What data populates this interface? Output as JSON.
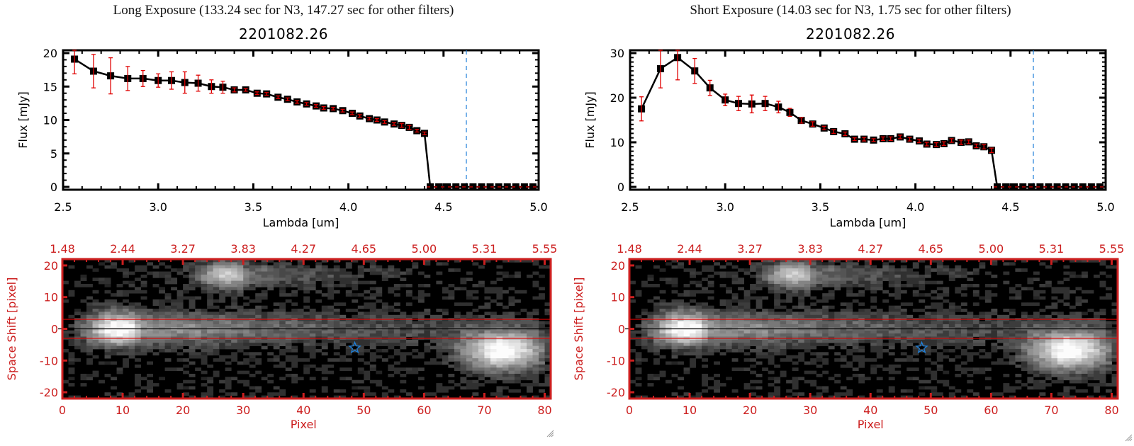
{
  "chart_data": [
    {
      "type": "line",
      "panel": "long",
      "title": "Long Exposure (133.24 sec for N3, 147.27 sec for other filters)",
      "subtitle": "2201082.26",
      "xlabel": "Lambda [um]",
      "ylabel": "Flux [mJy]",
      "xlim": [
        2.5,
        5.0
      ],
      "ylim": [
        0,
        20.5
      ],
      "xticks": [
        "2.5",
        "3.0",
        "3.5",
        "4.0",
        "4.5",
        "5.0"
      ],
      "xtick_values": [
        2.5,
        3.0,
        3.5,
        4.0,
        4.5,
        5.0
      ],
      "yticks": [
        "0",
        "5",
        "10",
        "15",
        "20"
      ],
      "ytick_values": [
        0,
        5,
        10,
        15,
        20
      ],
      "grid": false,
      "series": [
        {
          "name": "flux",
          "color": "#000000",
          "marker": "square",
          "x": [
            2.56,
            2.66,
            2.75,
            2.84,
            2.92,
            3.0,
            3.07,
            3.14,
            3.21,
            3.28,
            3.34,
            3.4,
            3.46,
            3.52,
            3.57,
            3.63,
            3.68,
            3.73,
            3.78,
            3.83,
            3.87,
            3.92,
            3.97,
            4.02,
            4.06,
            4.11,
            4.15,
            4.19,
            4.24,
            4.28,
            4.32,
            4.36,
            4.4
          ],
          "y": [
            19.1,
            17.3,
            16.6,
            16.2,
            16.2,
            15.9,
            15.9,
            15.6,
            15.5,
            15.0,
            14.9,
            14.5,
            14.5,
            14.0,
            13.9,
            13.4,
            13.1,
            12.7,
            12.4,
            12.1,
            11.8,
            11.7,
            11.4,
            11.0,
            10.6,
            10.2,
            10.0,
            9.7,
            9.4,
            9.2,
            8.9,
            8.4,
            8.0
          ],
          "yerr": [
            2.2,
            2.5,
            2.7,
            1.8,
            1.2,
            1.0,
            1.3,
            1.6,
            1.2,
            1.0,
            0.9,
            0.3,
            0.2,
            0.2,
            0.2,
            0.2,
            0.2,
            0.2,
            0.2,
            0.2,
            0.2,
            0.2,
            0.2,
            0.2,
            0.2,
            0.2,
            0.2,
            0.2,
            0.2,
            0.3,
            0.3,
            0.2,
            0.2
          ],
          "error_color": "#e00000"
        },
        {
          "name": "zero-flux",
          "color": "#000000",
          "marker": "square",
          "x": [
            4.43,
            4.475,
            4.52,
            4.565,
            4.61,
            4.655,
            4.7,
            4.745,
            4.79,
            4.835,
            4.88,
            4.925,
            4.97
          ],
          "y": [
            0,
            0,
            0,
            0,
            0,
            0,
            0,
            0,
            0,
            0,
            0,
            0,
            0
          ]
        }
      ],
      "annotations": {
        "vline": {
          "x": 4.62,
          "color": "#1e7fd8",
          "style": "dashed"
        },
        "hline": {
          "y": 0,
          "color": "#e00000",
          "style": "dashed"
        }
      }
    },
    {
      "type": "line",
      "panel": "short",
      "title": "Short Exposure (14.03 sec for N3, 1.75 sec for other filters)",
      "subtitle": "2201082.26",
      "xlabel": "Lambda [um]",
      "ylabel": "Flux [mJy]",
      "xlim": [
        2.5,
        5.0
      ],
      "ylim": [
        0,
        30.5
      ],
      "xticks": [
        "2.5",
        "3.0",
        "3.5",
        "4.0",
        "4.5",
        "5.0"
      ],
      "xtick_values": [
        2.5,
        3.0,
        3.5,
        4.0,
        4.5,
        5.0
      ],
      "yticks": [
        "0",
        "10",
        "20",
        "30"
      ],
      "ytick_values": [
        0,
        10,
        20,
        30
      ],
      "grid": false,
      "series": [
        {
          "name": "flux",
          "color": "#000000",
          "marker": "square",
          "x": [
            2.56,
            2.66,
            2.75,
            2.84,
            2.92,
            3.0,
            3.07,
            3.14,
            3.21,
            3.28,
            3.34,
            3.4,
            3.46,
            3.52,
            3.57,
            3.63,
            3.68,
            3.73,
            3.78,
            3.83,
            3.87,
            3.92,
            3.97,
            4.02,
            4.06,
            4.11,
            4.15,
            4.19,
            4.24,
            4.28,
            4.32,
            4.36,
            4.4
          ],
          "y": [
            17.5,
            26.5,
            29.0,
            26.0,
            22.2,
            19.5,
            18.7,
            18.6,
            18.7,
            17.9,
            16.7,
            14.9,
            14.1,
            13.2,
            12.4,
            11.9,
            10.7,
            10.7,
            10.5,
            10.8,
            10.8,
            11.2,
            10.7,
            10.3,
            9.6,
            9.5,
            9.7,
            10.4,
            10.0,
            10.1,
            9.2,
            9.0,
            8.2
          ],
          "yerr": [
            2.7,
            4.3,
            5.0,
            2.8,
            1.7,
            1.3,
            1.6,
            2.0,
            1.6,
            1.3,
            0.9,
            0.6,
            0.5,
            0.4,
            0.4,
            0.4,
            0.3,
            0.4,
            0.3,
            0.4,
            0.4,
            0.4,
            0.4,
            0.4,
            0.4,
            0.4,
            0.4,
            0.4,
            0.5,
            0.4,
            0.4,
            0.5,
            0.5
          ],
          "error_color": "#e00000"
        },
        {
          "name": "zero-flux",
          "color": "#000000",
          "marker": "square",
          "x": [
            4.43,
            4.475,
            4.52,
            4.565,
            4.61,
            4.655,
            4.7,
            4.745,
            4.79,
            4.835,
            4.88,
            4.925,
            4.97
          ],
          "y": [
            0,
            0,
            0,
            0,
            0,
            0,
            0,
            0,
            0,
            0,
            0,
            0,
            0
          ]
        }
      ],
      "annotations": {
        "vline": {
          "x": 4.62,
          "color": "#1e7fd8",
          "style": "dashed"
        },
        "hline": {
          "y": 0,
          "color": "#e00000",
          "style": "dashed"
        }
      }
    },
    {
      "type": "heatmap",
      "panel": "long",
      "xlabel": "Pixel",
      "ylabel": "Space Shift [pixel]",
      "top_axis_label": "",
      "xlim": [
        0,
        81
      ],
      "ylim": [
        -22,
        22
      ],
      "xticks": [
        "0",
        "10",
        "20",
        "30",
        "40",
        "50",
        "60",
        "70",
        "80"
      ],
      "xtick_values": [
        0,
        10,
        20,
        30,
        40,
        50,
        60,
        70,
        80
      ],
      "yticks": [
        "20",
        "10",
        "0",
        "-10",
        "-20"
      ],
      "ytick_values": [
        20,
        10,
        0,
        -10,
        -20
      ],
      "top_ticks": [
        "1.48",
        "2.44",
        "3.27",
        "3.83",
        "4.27",
        "4.65",
        "5.00",
        "5.31",
        "5.55"
      ],
      "axis_color": "#cc1f1f",
      "colormap": "gray",
      "sources": [
        {
          "x": 9,
          "y": 0,
          "peak": 1.0,
          "sx": 3.5,
          "sy": 2.5,
          "tail_length": 70
        },
        {
          "x": 27,
          "y": 17,
          "peak": 0.7,
          "sx": 3,
          "sy": 2,
          "tail_length": 30
        },
        {
          "x": 73,
          "y": -7,
          "peak": 1.0,
          "sx": 4.5,
          "sy": 2.8,
          "tail_length": 10
        }
      ],
      "aperture_lines": {
        "y": [
          3,
          -3
        ],
        "color": "#e00000"
      },
      "center_line": {
        "y": 0,
        "color": "#000000"
      },
      "marker": {
        "type": "star",
        "x": 48.5,
        "y": -6,
        "color": "#1e7fd8"
      }
    },
    {
      "type": "heatmap",
      "panel": "short",
      "xlabel": "Pixel",
      "ylabel": "Space Shift [pixel]",
      "xlim": [
        0,
        81
      ],
      "ylim": [
        -22,
        22
      ],
      "xticks": [
        "0",
        "10",
        "20",
        "30",
        "40",
        "50",
        "60",
        "70",
        "80"
      ],
      "xtick_values": [
        0,
        10,
        20,
        30,
        40,
        50,
        60,
        70,
        80
      ],
      "yticks": [
        "20",
        "10",
        "0",
        "-10",
        "-20"
      ],
      "ytick_values": [
        20,
        10,
        0,
        -10,
        -20
      ],
      "top_ticks": [
        "1.48",
        "2.44",
        "3.27",
        "3.83",
        "4.27",
        "4.65",
        "5.00",
        "5.31",
        "5.55"
      ],
      "axis_color": "#cc1f1f",
      "colormap": "gray",
      "sources": [
        {
          "x": 9,
          "y": 0,
          "peak": 1.0,
          "sx": 3.5,
          "sy": 2.5,
          "tail_length": 70
        },
        {
          "x": 27,
          "y": 17,
          "peak": 0.7,
          "sx": 3,
          "sy": 2,
          "tail_length": 30
        },
        {
          "x": 73,
          "y": -7,
          "peak": 1.0,
          "sx": 4.5,
          "sy": 2.8,
          "tail_length": 10
        }
      ],
      "aperture_lines": {
        "y": [
          3,
          -3
        ],
        "color": "#e00000"
      },
      "center_line": {
        "y": 0,
        "color": "#000000"
      },
      "marker": {
        "type": "star",
        "x": 48.5,
        "y": -6,
        "color": "#1e7fd8"
      }
    }
  ],
  "panels": [
    {
      "title": "Long Exposure (133.24 sec for N3, 147.27 sec for other filters)",
      "subtitle": "2201082.26"
    },
    {
      "title": "Short Exposure (14.03 sec for N3, 1.75 sec for other filters)",
      "subtitle": "2201082.26"
    }
  ]
}
